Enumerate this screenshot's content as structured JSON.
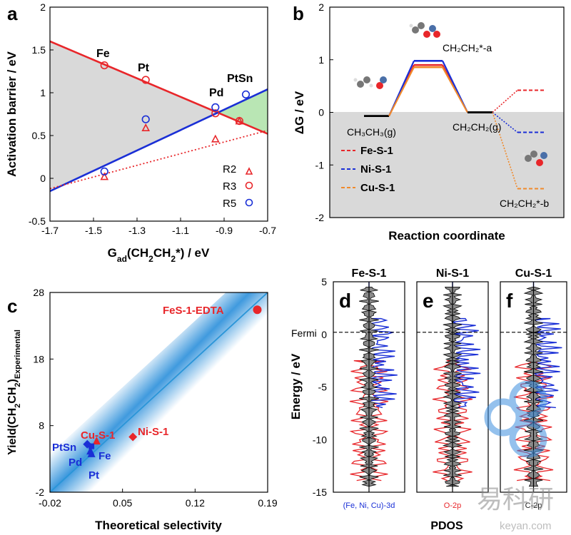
{
  "watermark": {
    "text": "易科研",
    "url": "keyan.com"
  },
  "chart_data": [
    {
      "panel": "a",
      "type": "scatter",
      "xlabel_main": "G",
      "xlabel_sub": "ad",
      "xlabel_rest": "(CH",
      "xlabel_sub2": "2",
      "xlabel_rest2": "CH",
      "xlabel_sub3": "2",
      "xlabel_rest3": "*) / eV",
      "ylabel": "Activation barrier / eV",
      "xlim": [
        -1.7,
        -0.7
      ],
      "ylim": [
        -0.5,
        2
      ],
      "xticks": [
        "-1.7",
        "-1.5",
        "-1.3",
        "-1.1",
        "-0.9",
        "-0.7"
      ],
      "yticks": [
        "-0.5",
        "0",
        "0.5",
        "1",
        "1.5",
        "2"
      ],
      "metal_labels": [
        "Fe",
        "Pt",
        "Pd",
        "PtSn"
      ],
      "series": [
        {
          "name": "R2",
          "marker": "triangle",
          "color": "#e8262a",
          "x": [
            -1.45,
            -1.26,
            -0.94,
            -0.83
          ],
          "y": [
            0.02,
            0.59,
            0.46,
            0.67
          ]
        },
        {
          "name": "R3",
          "marker": "circle",
          "color": "#e8262a",
          "x": [
            -1.45,
            -1.26,
            -0.94,
            -0.83
          ],
          "y": [
            1.32,
            1.15,
            0.76,
            0.67
          ]
        },
        {
          "name": "R5",
          "marker": "circle",
          "color": "#1a2fd6",
          "x": [
            -1.45,
            -1.26,
            -0.94,
            -0.8
          ],
          "y": [
            0.08,
            0.69,
            0.83,
            0.98
          ]
        }
      ],
      "fit_lines": [
        {
          "color": "#e8262a",
          "style": "solid",
          "x": [
            -1.7,
            -0.7
          ],
          "y": [
            1.6,
            0.52
          ]
        },
        {
          "color": "#1a2fd6",
          "style": "solid",
          "x": [
            -1.7,
            -0.7
          ],
          "y": [
            -0.15,
            1.04
          ]
        },
        {
          "color": "#e8262a",
          "style": "dotted",
          "x": [
            -1.7,
            -0.7
          ],
          "y": [
            -0.12,
            0.56
          ]
        }
      ]
    },
    {
      "panel": "b",
      "type": "line",
      "ylabel": "ΔG / eV",
      "xlabel": "Reaction coordinate",
      "ylim": [
        -2,
        2
      ],
      "yticks": [
        "-2",
        "-1",
        "0",
        "1",
        "2"
      ],
      "states": [
        "CH₃CH₃(g)",
        "CH₂CH₂*-a",
        "CH₂CH₂(g)",
        "CH₂CH₂*-b"
      ],
      "series": [
        {
          "name": "Fe-S-1",
          "color": "#e8262a",
          "values": [
            -0.07,
            0.9,
            0,
            0.42
          ]
        },
        {
          "name": "Ni-S-1",
          "color": "#1a2fd6",
          "values": [
            -0.07,
            1.02,
            0,
            -0.38
          ]
        },
        {
          "name": "Cu-S-1",
          "color": "#f08a2c",
          "values": [
            -0.07,
            0.94,
            0,
            -1.45
          ]
        }
      ]
    },
    {
      "panel": "c",
      "type": "scatter",
      "xlabel": "Theoretical selectivity",
      "ylabel_main": "Yield(CH",
      "ylabel_sub": "2",
      "ylabel_mid": "CH",
      "ylabel_sub2": "2",
      "ylabel_end": ")",
      "ylabel_subscript": "Experimental",
      "xlim": [
        -0.02,
        0.19
      ],
      "ylim": [
        -2,
        28
      ],
      "xticks": [
        "-0.02",
        "0.05",
        "0.12",
        "0.19"
      ],
      "yticks": [
        "-2",
        "8",
        "18",
        "28"
      ],
      "trend": {
        "x": [
          -0.02,
          0.19
        ],
        "y": [
          -2,
          28
        ]
      },
      "points": [
        {
          "label": "FeS-1-EDTA",
          "x": 0.18,
          "y": 25.4,
          "color": "#e8262a",
          "marker": "circle"
        },
        {
          "label": "Ni-S-1",
          "x": 0.06,
          "y": 6.3,
          "color": "#e8262a",
          "marker": "diamond"
        },
        {
          "label": "Cu-S-1",
          "x": 0.025,
          "y": 5.7,
          "color": "#e8262a",
          "marker": "triangle"
        },
        {
          "label": "PtSn",
          "x": 0.016,
          "y": 5.2,
          "color": "#1a2fd6",
          "marker": "diamond"
        },
        {
          "label": "Fe",
          "x": 0.02,
          "y": 4.9,
          "color": "#1a2fd6",
          "marker": "square"
        },
        {
          "label": "Pd",
          "x": 0.019,
          "y": 4.2,
          "color": "#1a2fd6",
          "marker": "triangle"
        },
        {
          "label": "Pt",
          "x": 0.02,
          "y": 3.8,
          "color": "#1a2fd6",
          "marker": "triangle"
        }
      ]
    },
    {
      "panel": "d-f",
      "type": "line",
      "ylabel": "Energy / eV",
      "xlabel": "PDOS",
      "ylim": [
        -15,
        5
      ],
      "yticks": [
        "5",
        "0",
        "-5",
        "-10",
        "-15"
      ],
      "fermi_label": "Fermi",
      "fermi_level": 0.2,
      "subpanels": [
        {
          "letter": "d",
          "title": "Fe-S-1",
          "legend": "(Fe, Ni, Cu)-3d",
          "legend_color": "#1a2fd6"
        },
        {
          "letter": "e",
          "title": "Ni-S-1",
          "legend": "O-2p",
          "legend_color": "#e8262a"
        },
        {
          "letter": "f",
          "title": "Cu-S-1",
          "legend": "C-2p",
          "legend_color": "#222222"
        }
      ]
    }
  ]
}
